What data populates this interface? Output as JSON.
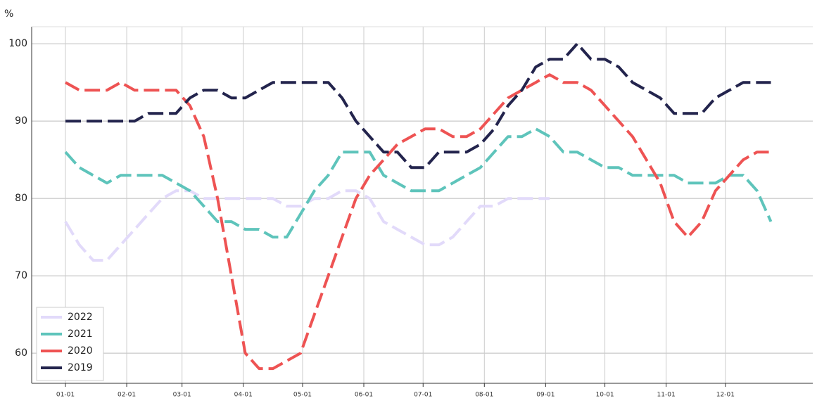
{
  "chart_data": {
    "type": "line",
    "y_label": "%",
    "x": [
      "01-01",
      "01-08",
      "01-15",
      "01-22",
      "01-29",
      "02-05",
      "02-12",
      "02-19",
      "02-26",
      "03-05",
      "03-12",
      "03-19",
      "03-26",
      "04-02",
      "04-09",
      "04-16",
      "04-23",
      "04-30",
      "05-07",
      "05-14",
      "05-21",
      "05-28",
      "06-04",
      "06-11",
      "06-18",
      "06-25",
      "07-02",
      "07-09",
      "07-16",
      "07-23",
      "07-30",
      "08-06",
      "08-13",
      "08-20",
      "08-27",
      "09-03",
      "09-10",
      "09-17",
      "09-24",
      "10-01",
      "10-08",
      "10-15",
      "10-22",
      "10-29",
      "11-05",
      "11-12",
      "11-19",
      "11-26",
      "12-03",
      "12-10",
      "12-17",
      "12-24"
    ],
    "xticks": [
      "01-01",
      "02-01",
      "03-01",
      "04-01",
      "05-01",
      "06-01",
      "07-01",
      "08-01",
      "09-01",
      "10-01",
      "11-01",
      "12-01"
    ],
    "ylim": [
      56.1,
      102.2
    ],
    "yticks": [
      60,
      70,
      80,
      90,
      100
    ],
    "grid": true,
    "legend": "lower left",
    "series": [
      {
        "name": "2022",
        "color": "#e2dafa",
        "values": [
          77,
          74,
          72,
          72,
          74,
          76,
          78,
          80,
          81,
          81,
          80,
          80,
          80,
          80,
          80,
          80,
          79,
          79,
          80,
          80,
          81,
          81,
          80,
          77,
          76,
          75,
          74,
          74,
          75,
          77,
          79,
          79,
          80,
          80,
          80,
          80,
          null,
          null,
          null,
          null,
          null,
          null,
          null,
          null,
          null,
          null,
          null,
          null,
          null,
          null,
          null,
          null
        ]
      },
      {
        "name": "2021",
        "color": "#5ec4bb",
        "values": [
          86,
          84,
          83,
          82,
          83,
          83,
          83,
          83,
          82,
          81,
          79,
          77,
          77,
          76,
          76,
          75,
          75,
          78,
          81,
          83,
          86,
          86,
          86,
          83,
          82,
          81,
          81,
          81,
          82,
          83,
          84,
          86,
          88,
          88,
          89,
          88,
          86,
          86,
          85,
          84,
          84,
          83,
          83,
          83,
          83,
          82,
          82,
          82,
          83,
          83,
          81,
          77
        ]
      },
      {
        "name": "2020",
        "color": "#ee5353",
        "values": [
          95,
          94,
          94,
          94,
          95,
          94,
          94,
          94,
          94,
          92,
          88,
          80,
          70,
          60,
          58,
          58,
          59,
          60,
          65,
          70,
          75,
          80,
          83,
          85,
          87,
          88,
          89,
          89,
          88,
          88,
          89,
          91,
          93,
          94,
          95,
          96,
          95,
          95,
          94,
          92,
          90,
          88,
          85,
          82,
          77,
          75,
          77,
          81,
          83,
          85,
          86,
          86
        ]
      },
      {
        "name": "2019",
        "color": "#23244d",
        "values": [
          90,
          90,
          90,
          90,
          90,
          90,
          91,
          91,
          91,
          93,
          94,
          94,
          93,
          93,
          94,
          95,
          95,
          95,
          95,
          95,
          93,
          90,
          88,
          86,
          86,
          84,
          84,
          86,
          86,
          86,
          87,
          89,
          92,
          94,
          97,
          98,
          98,
          100,
          98,
          98,
          97,
          95,
          94,
          93,
          91,
          91,
          91,
          93,
          94,
          95,
          95,
          95
        ]
      }
    ]
  }
}
